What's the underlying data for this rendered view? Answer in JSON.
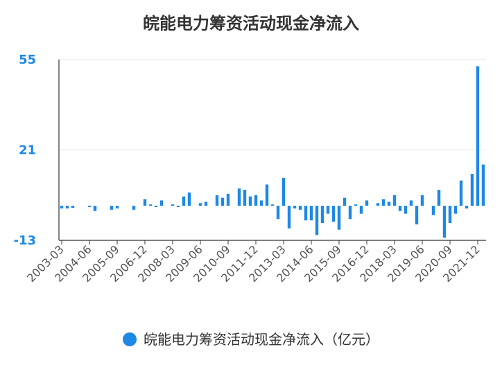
{
  "chart_data": {
    "type": "bar",
    "title": "皖能电力筹资活动现金净流入",
    "legend": {
      "label": "皖能电力筹资活动现金净流入（亿元）",
      "placement": "bottom"
    },
    "color": "#1e88e5",
    "ylim": [
      -13,
      55
    ],
    "yticks": [
      -13,
      21,
      55
    ],
    "grid": true,
    "x_tick_labels": [
      "2003-03",
      "2004-06",
      "2005-09",
      "2006-12",
      "2008-03",
      "2009-06",
      "2010-09",
      "2011-12",
      "2013-03",
      "2014-06",
      "2015-09",
      "2016-12",
      "2018-03",
      "2019-06",
      "2020-09",
      "2021-12"
    ],
    "categories": [
      "2003-03",
      "2003-06",
      "2003-09",
      "2003-12",
      "2004-03",
      "2004-06",
      "2004-09",
      "2004-12",
      "2005-03",
      "2005-06",
      "2005-09",
      "2005-12",
      "2006-03",
      "2006-06",
      "2006-09",
      "2006-12",
      "2007-03",
      "2007-06",
      "2007-09",
      "2007-12",
      "2008-03",
      "2008-06",
      "2008-09",
      "2008-12",
      "2009-03",
      "2009-06",
      "2009-09",
      "2009-12",
      "2010-03",
      "2010-06",
      "2010-09",
      "2010-12",
      "2011-03",
      "2011-06",
      "2011-09",
      "2011-12",
      "2012-03",
      "2012-06",
      "2012-09",
      "2012-12",
      "2013-03",
      "2013-06",
      "2013-09",
      "2013-12",
      "2014-03",
      "2014-06",
      "2014-09",
      "2014-12",
      "2015-03",
      "2015-06",
      "2015-09",
      "2015-12",
      "2016-03",
      "2016-06",
      "2016-09",
      "2016-12",
      "2017-03",
      "2017-06",
      "2017-09",
      "2017-12",
      "2018-03",
      "2018-06",
      "2018-09",
      "2018-12",
      "2019-03",
      "2019-06",
      "2019-09",
      "2019-12",
      "2020-03",
      "2020-06",
      "2020-09",
      "2020-12",
      "2021-03",
      "2021-06",
      "2021-09",
      "2021-12",
      "2022-03"
    ],
    "values": [
      -1,
      -1,
      -0.8,
      0,
      0,
      -0.5,
      -2,
      0,
      0,
      -1.5,
      -1,
      0,
      0,
      -1.5,
      0,
      2.5,
      0.5,
      -0.5,
      2,
      0,
      0.5,
      -0.5,
      3.5,
      5,
      0,
      1,
      1.5,
      0,
      4,
      3,
      4.5,
      0,
      6.5,
      6,
      3.5,
      4,
      2,
      8,
      0.5,
      -5,
      10.5,
      -8.5,
      -1,
      -1.5,
      -5.5,
      -5.5,
      -11,
      -6.5,
      -3,
      -6,
      -9,
      3,
      -5,
      0.5,
      -3,
      2,
      0,
      1,
      2.5,
      1.5,
      4,
      -2,
      -3,
      2,
      -7,
      4,
      0,
      -3.5,
      6,
      -12,
      -6.5,
      -3,
      9.5,
      -1,
      12,
      52.5,
      15.5
    ]
  }
}
